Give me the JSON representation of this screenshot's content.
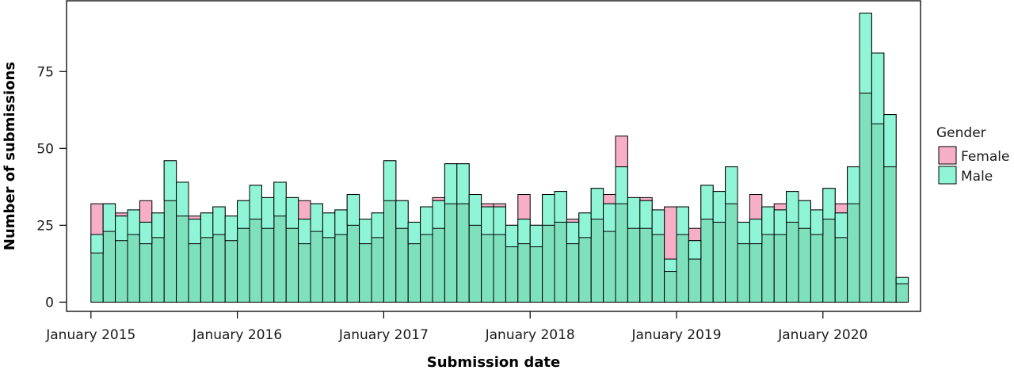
{
  "chart_data": {
    "type": "bar",
    "stacked": true,
    "overlay": "male bar drawn over female bar; total height = male + female",
    "xlabel": "Submission date",
    "ylabel": "Number of submissions",
    "yticks": [
      0,
      25,
      50,
      75
    ],
    "ylim": [
      -3,
      98
    ],
    "xticks": [
      "January 2015",
      "January 2016",
      "January 2017",
      "January 2018",
      "January 2019",
      "January 2020"
    ],
    "x_range": [
      "2014-11",
      "2020-09"
    ],
    "legend": {
      "title": "Gender",
      "placement": "right",
      "entries": [
        {
          "name": "Female",
          "color": "#F7AFC8"
        },
        {
          "name": "Male",
          "color": "#8FF5D6"
        }
      ]
    },
    "colors": {
      "overlap": "#7FE0BE",
      "outline": "#000000"
    },
    "months": [
      "2015-01",
      "2015-02",
      "2015-03",
      "2015-04",
      "2015-05",
      "2015-06",
      "2015-07",
      "2015-08",
      "2015-09",
      "2015-10",
      "2015-11",
      "2015-12",
      "2016-01",
      "2016-02",
      "2016-03",
      "2016-04",
      "2016-05",
      "2016-06",
      "2016-07",
      "2016-08",
      "2016-09",
      "2016-10",
      "2016-11",
      "2016-12",
      "2017-01",
      "2017-02",
      "2017-03",
      "2017-04",
      "2017-05",
      "2017-06",
      "2017-07",
      "2017-08",
      "2017-09",
      "2017-10",
      "2017-11",
      "2017-12",
      "2018-01",
      "2018-02",
      "2018-03",
      "2018-04",
      "2018-05",
      "2018-06",
      "2018-07",
      "2018-08",
      "2018-09",
      "2018-10",
      "2018-11",
      "2018-12",
      "2019-01",
      "2019-02",
      "2019-03",
      "2019-04",
      "2019-05",
      "2019-06",
      "2019-07",
      "2019-08",
      "2019-09",
      "2019-10",
      "2019-11",
      "2019-12",
      "2020-01",
      "2020-02",
      "2020-03",
      "2020-04",
      "2020-05",
      "2020-06",
      "2020-07",
      "2020-08"
    ],
    "series": [
      {
        "name": "Male",
        "values": [
          22,
          32,
          28,
          30,
          26,
          29,
          46,
          39,
          27,
          29,
          31,
          28,
          33,
          38,
          34,
          39,
          34,
          27,
          32,
          29,
          30,
          35,
          27,
          29,
          46,
          33,
          26,
          31,
          33,
          45,
          45,
          35,
          31,
          31,
          25,
          27,
          25,
          35,
          36,
          26,
          29,
          37,
          32,
          44,
          34,
          33,
          30,
          14,
          31,
          20,
          38,
          36,
          44,
          26,
          27,
          31,
          30,
          36,
          33,
          30,
          37,
          29,
          44,
          94,
          81,
          61,
          8,
          0
        ]
      },
      {
        "name": "Female",
        "values": [
          10,
          0,
          1,
          0,
          7,
          0,
          0,
          0,
          1,
          0,
          0,
          0,
          0,
          0,
          0,
          0,
          0,
          6,
          0,
          0,
          0,
          0,
          0,
          0,
          0,
          0,
          0,
          0,
          1,
          0,
          0,
          0,
          1,
          1,
          0,
          8,
          0,
          0,
          0,
          1,
          0,
          0,
          3,
          10,
          0,
          1,
          0,
          17,
          0,
          4,
          0,
          0,
          0,
          0,
          8,
          0,
          2,
          0,
          0,
          0,
          0,
          3,
          0,
          0,
          0,
          0,
          0,
          0
        ]
      }
    ]
  }
}
